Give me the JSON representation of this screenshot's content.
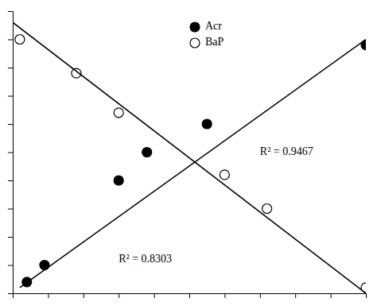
{
  "chart_data": {
    "type": "scatter",
    "series": [
      {
        "name": "Acr",
        "color": "#000000",
        "marker": "circle",
        "x": [
          0.04,
          0.09,
          0.3,
          0.38,
          0.55,
          1.0
        ],
        "values": [
          0.04,
          0.1,
          0.4,
          0.5,
          0.6,
          0.88
        ]
      },
      {
        "name": "BaP",
        "color": "#000000",
        "marker": "open-circle",
        "x": [
          0.02,
          0.18,
          0.3,
          0.6,
          0.72,
          1.0
        ],
        "values": [
          0.9,
          0.78,
          0.64,
          0.42,
          0.3,
          0.02
        ]
      },
      {
        "type": "line",
        "color": "#000000",
        "line_style": "solid",
        "x": [
          0.02,
          1.0
        ],
        "values": [
          0.02,
          0.9
        ]
      },
      {
        "type": "line",
        "color": "#000000",
        "line_style": "solid",
        "x": [
          0.0,
          1.0
        ],
        "values": [
          0.96,
          0.0
        ]
      }
    ],
    "annotations": [
      "R² = 0.9467",
      "R² = 0.8303"
    ],
    "xlim": [
      0,
      1.0
    ],
    "ylim": [
      0,
      1.0
    ],
    "xticks": [
      0,
      0.1,
      0.2,
      0.3,
      0.4,
      0.5,
      0.6,
      0.7,
      0.8,
      0.9,
      1.0
    ],
    "yticks": [
      0,
      0.1,
      0.2,
      0.3,
      0.4,
      0.5,
      0.6,
      0.7,
      0.8,
      0.9,
      1.0
    ],
    "tick_labels": false,
    "grid": false,
    "legend": "upper center"
  }
}
